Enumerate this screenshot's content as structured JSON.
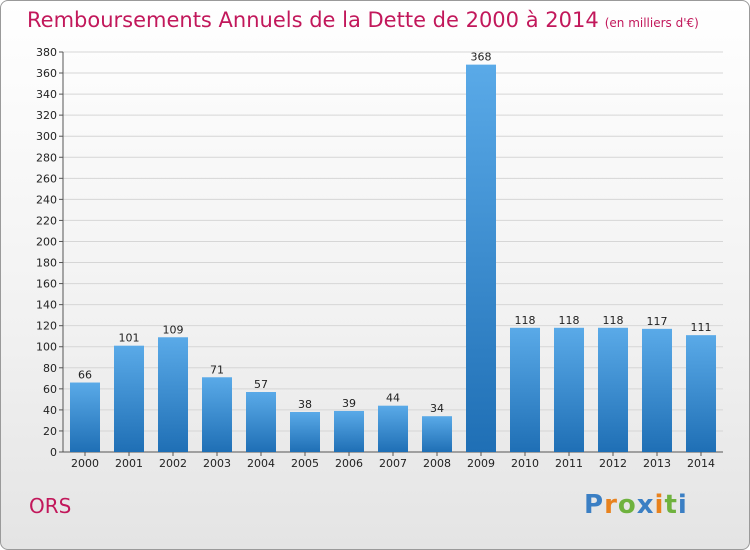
{
  "title": "Remboursements Annuels de la Dette de 2000 à 2014",
  "unit": "(en milliers d'€)",
  "commune": "ORS",
  "logo": {
    "text": "Proxiti",
    "letters": [
      "P",
      "r",
      "o",
      "x",
      "i",
      "t",
      "i"
    ],
    "colors": [
      "#3b7fc4",
      "#e8821e",
      "#6fb23e",
      "#3b7fc4",
      "#e8821e",
      "#6fb23e",
      "#3b7fc4"
    ]
  },
  "colors": {
    "title": "#c2185b",
    "bar_top": "#5aaae8",
    "bar_bottom": "#1f6fb5"
  },
  "chart_data": {
    "type": "bar",
    "categories": [
      "2000",
      "2001",
      "2002",
      "2003",
      "2004",
      "2005",
      "2006",
      "2007",
      "2008",
      "2009",
      "2010",
      "2011",
      "2012",
      "2013",
      "2014"
    ],
    "values": [
      66,
      101,
      109,
      71,
      57,
      38,
      39,
      44,
      34,
      368,
      118,
      118,
      118,
      117,
      111
    ],
    "ylim": [
      0,
      380
    ],
    "yticks": [
      0,
      20,
      40,
      60,
      80,
      100,
      120,
      140,
      160,
      180,
      200,
      220,
      240,
      260,
      280,
      300,
      320,
      340,
      360,
      380
    ],
    "grid": true
  }
}
